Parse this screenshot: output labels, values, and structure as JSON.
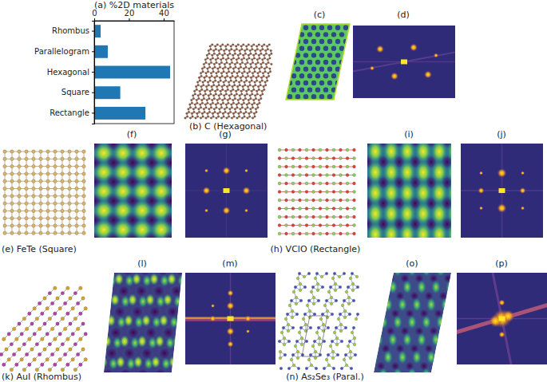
{
  "chart_data": {
    "type": "bar",
    "title": "(a) %2D materials",
    "orientation": "horizontal",
    "categories": [
      "Rhombus",
      "Parallelogram",
      "Hexagonal",
      "Square",
      "Rectangle"
    ],
    "values": [
      3.7,
      7.8,
      43.7,
      15,
      29.5
    ],
    "color": "#1f77b4",
    "xlim": [
      0,
      46
    ],
    "xticks": [
      0,
      20,
      40
    ]
  },
  "panels": [
    {
      "label": "(b) C (Hexagonal)"
    },
    {
      "label": "(c)"
    },
    {
      "label": "(d)"
    },
    {
      "label": "(e) FeTe (Square)"
    },
    {
      "label": "(f)"
    },
    {
      "label": "(g)"
    },
    {
      "label": "(h) VClO (Rectangle)"
    },
    {
      "label": "(i)"
    },
    {
      "label": "(j)"
    },
    {
      "label": "(k) AuI (Rhombus)"
    },
    {
      "label": "(l)"
    },
    {
      "label": "(m)"
    },
    {
      "label": "(n) As₂Se₃ (Paral.)"
    },
    {
      "label": "(o)"
    },
    {
      "label": "(p)"
    }
  ]
}
